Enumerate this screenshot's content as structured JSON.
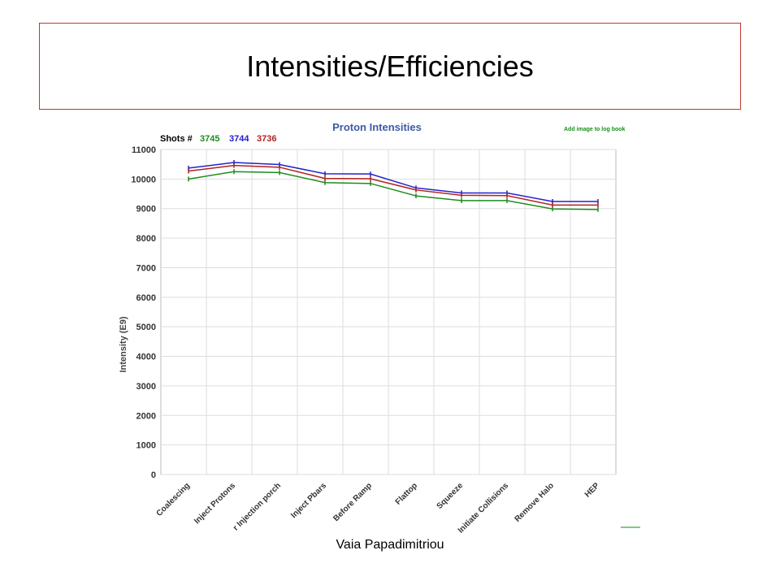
{
  "slide": {
    "title": "Intensities/Efficiencies",
    "footer": "Vaia Papadimitriou"
  },
  "chart_header": {
    "shots_label": "Shots #",
    "add_image_link": "Add image to log book"
  },
  "colors": {
    "grid": "#dddddd",
    "axis_frame": "#bbbbbb",
    "title": "#3b5ba5",
    "link": "#1a8f1a"
  },
  "chart_data": {
    "type": "line",
    "title": "Proton  Intensities",
    "xlabel": "",
    "ylabel": "Intensity (E9)",
    "ylim": [
      0,
      11000
    ],
    "yticks": [
      0,
      1000,
      2000,
      3000,
      4000,
      5000,
      6000,
      7000,
      8000,
      9000,
      10000,
      11000
    ],
    "grid": true,
    "categories": [
      "Coalescing",
      "Inject Protons",
      "After Injection porch",
      "Inject Pbars",
      "Before Ramp",
      "Flattop",
      "Squeeze",
      "Initiate Collisions",
      "Remove Halo",
      "HEP"
    ],
    "category_labels_visible": [
      "Coalescing",
      "Inject Protons",
      "r Injection porch",
      "Inject Pbars",
      "Before Ramp",
      "Flattop",
      "Squeeze",
      "Initiate Collisions",
      "Remove Halo",
      "HEP"
    ],
    "series": [
      {
        "name": "3745",
        "color": "#1e8c1e",
        "values": [
          10000,
          10250,
          10220,
          9880,
          9850,
          9430,
          9270,
          9270,
          8990,
          8970
        ]
      },
      {
        "name": "3744",
        "color": "#2222cc",
        "values": [
          10370,
          10560,
          10490,
          10180,
          10170,
          9700,
          9530,
          9530,
          9240,
          9240
        ]
      },
      {
        "name": "3736",
        "color": "#b22222",
        "values": [
          10270,
          10460,
          10400,
          10020,
          10010,
          9630,
          9450,
          9440,
          9120,
          9120
        ]
      }
    ]
  }
}
